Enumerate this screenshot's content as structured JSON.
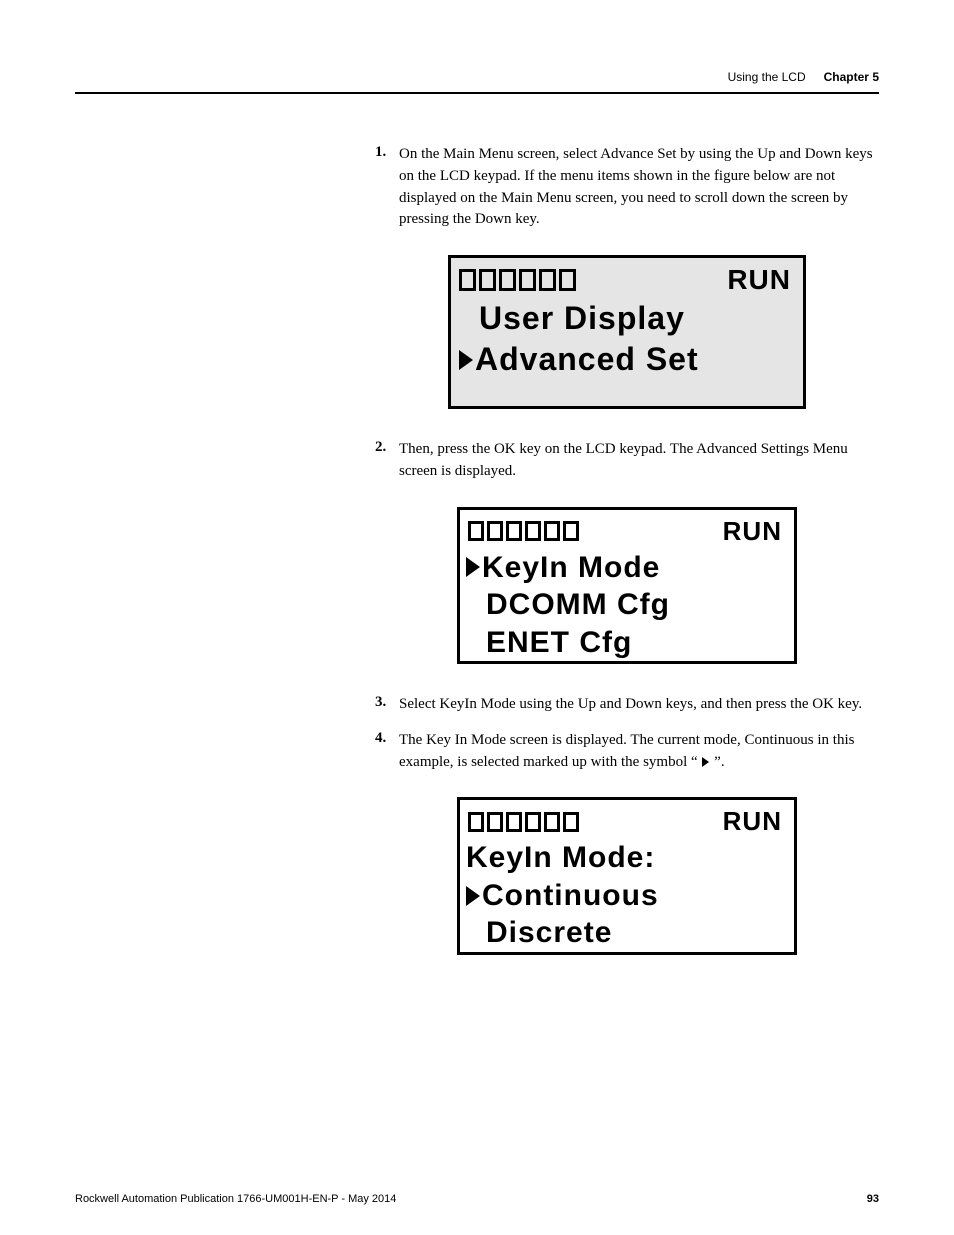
{
  "header": {
    "section": "Using the LCD",
    "chapter": "Chapter 5"
  },
  "steps": {
    "s1": {
      "num": "1.",
      "text": "On the Main Menu screen, select Advance Set by using the Up and Down keys on the LCD keypad. If the menu items shown in the figure below are not displayed on the Main Menu screen, you need to scroll down the screen by pressing the Down key."
    },
    "s2": {
      "num": "2.",
      "text": "Then, press the OK key on the LCD keypad. The Advanced Settings Menu screen is displayed."
    },
    "s3": {
      "num": "3.",
      "text": "Select KeyIn Mode using the Up and Down keys, and then press the OK key."
    },
    "s4": {
      "num": "4.",
      "text_a": "The Key In Mode screen is displayed. The current mode, Continuous in this example, is selected marked up with the symbol “ ",
      "text_b": " ”."
    }
  },
  "lcd1": {
    "run": "RUN",
    "line1": "User Display",
    "line2": "Advanced Set"
  },
  "lcd2": {
    "run": "RUN",
    "line1": "KeyIn Mode",
    "line2": "DCOMM Cfg",
    "line3": "ENET Cfg"
  },
  "lcd3": {
    "run": "RUN",
    "line1": "KeyIn Mode:",
    "line2": "Continuous",
    "line3": "Discrete"
  },
  "footer": {
    "pub": "Rockwell Automation Publication 1766-UM001H-EN-P - May 2014",
    "page": "93"
  }
}
